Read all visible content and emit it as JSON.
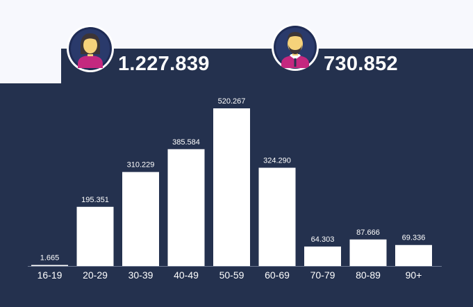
{
  "colors": {
    "background_dark": "#24314e",
    "background_light": "#f7f8fd",
    "bar": "#ffffff",
    "text": "#ffffff",
    "female_shirt": "#c4287f",
    "male_shirt": "#c4287f",
    "skin": "#f6d27a",
    "hair": "#3d3536",
    "avatar_ring": "#1f2c55"
  },
  "totals": {
    "female": {
      "icon": "female-avatar-icon",
      "value": "1.227.839"
    },
    "male": {
      "icon": "male-avatar-icon",
      "value": "730.852"
    }
  },
  "chart_data": {
    "type": "bar",
    "title": "",
    "xlabel": "",
    "ylabel": "",
    "categories": [
      "16-19",
      "20-29",
      "30-39",
      "40-49",
      "50-59",
      "60-69",
      "70-79",
      "80-89",
      "90+"
    ],
    "values": [
      1665,
      195351,
      310229,
      385584,
      520267,
      324290,
      64303,
      87666,
      69336
    ],
    "value_labels": [
      "1.665",
      "195.351",
      "310.229",
      "385.584",
      "520.267",
      "324.290",
      "64.303",
      "87.666",
      "69.336"
    ],
    "ylim": [
      0,
      520267
    ],
    "grid": false,
    "legend": "none"
  }
}
